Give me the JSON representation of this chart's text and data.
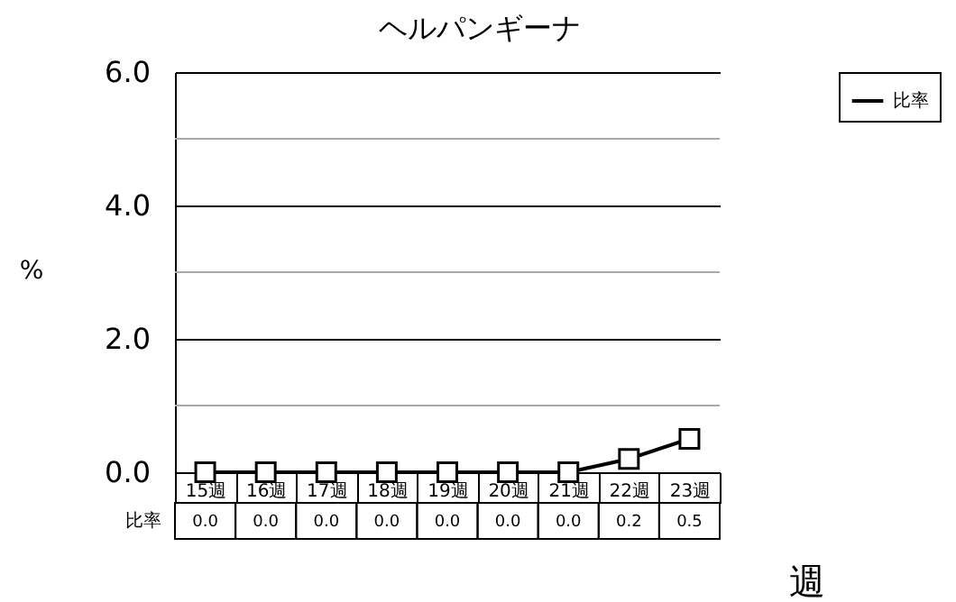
{
  "chart_data": {
    "type": "line",
    "title": "ヘルパンギーナ",
    "ylabel": "%",
    "xlabel": "週",
    "categories": [
      "15週",
      "16週",
      "17週",
      "18週",
      "19週",
      "20週",
      "21週",
      "22週",
      "23週"
    ],
    "series": [
      {
        "name": "比率",
        "color": "#000000",
        "values": [
          0,
          0,
          0,
          0,
          0,
          0,
          0,
          0.2,
          0.5
        ],
        "value_labels": [
          "0.0",
          "0.0",
          "0.0",
          "0.0",
          "0.0",
          "0.0",
          "0.0",
          "0.2",
          "0.5"
        ]
      }
    ],
    "ylim": [
      0,
      6
    ],
    "yticks": [
      {
        "value": 0,
        "label": "0.0"
      },
      {
        "value": 1,
        "label": null
      },
      {
        "value": 2,
        "label": "2.0"
      },
      {
        "value": 3,
        "label": null
      },
      {
        "value": 4,
        "label": "4.0"
      },
      {
        "value": 5,
        "label": null
      },
      {
        "value": 6,
        "label": "6.0"
      }
    ],
    "grid": "y",
    "legend": "top right",
    "marker": "square",
    "line_style": "solid"
  }
}
